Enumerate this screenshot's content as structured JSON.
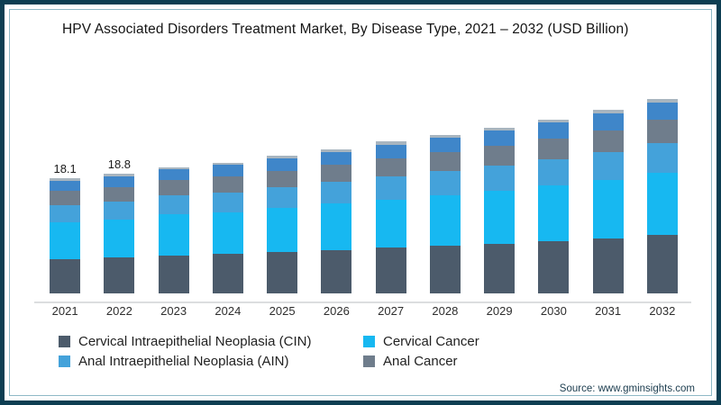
{
  "source": "Source: www.gminsights.com",
  "colors": {
    "frame_border": "#0D3E52",
    "frame_inner_line": "#8FB9C6",
    "axis_line": "#DCDEDF",
    "cin_dark_slate": "#4C5B6B",
    "cervical_cancer_cyan": "#17B8F1",
    "ain_blue": "#44A2DA",
    "anal_cancer_gray": "#6F7D8C",
    "unlabeled_blue": "#3F86C9",
    "unlabeled_cap_gray": "#A8B5BF"
  },
  "legend": {
    "items": [
      {
        "label": "Cervical Intraepithelial Neoplasia (CIN)",
        "color": "#4C5B6B"
      },
      {
        "label": "Cervical Cancer",
        "color": "#17B8F1"
      },
      {
        "label": "Anal Intraepithelial Neoplasia (AIN)",
        "color": "#44A2DA"
      },
      {
        "label": "Anal Cancer",
        "color": "#6F7D8C"
      }
    ]
  },
  "chart_data": {
    "type": "bar",
    "stacked": true,
    "title": "HPV Associated Disorders Treatment Market, By Disease Type, 2021 – 2032 (USD Billion)",
    "unit": "USD Billion",
    "xlabel": "",
    "ylabel": "",
    "grid": false,
    "legend_position": "bottom",
    "categories": [
      "2021",
      "2022",
      "2023",
      "2024",
      "2025",
      "2026",
      "2027",
      "2028",
      "2029",
      "2030",
      "2031",
      "2032"
    ],
    "series": [
      {
        "name": "Cervical Intraepithelial Neoplasia (CIN)",
        "color": "#4C5B6B",
        "in_legend": true,
        "values": [
          5.4,
          5.6,
          6.0,
          6.2,
          6.5,
          6.8,
          7.2,
          7.5,
          7.8,
          8.2,
          8.7,
          9.2
        ]
      },
      {
        "name": "Cervical Cancer",
        "color": "#17B8F1",
        "in_legend": true,
        "values": [
          5.8,
          6.0,
          6.4,
          6.6,
          6.9,
          7.3,
          7.6,
          8.0,
          8.4,
          8.8,
          9.2,
          9.8
        ]
      },
      {
        "name": "Anal Intraepithelial Neoplasia (AIN)",
        "color": "#44A2DA",
        "in_legend": true,
        "values": [
          2.7,
          2.8,
          3.0,
          3.1,
          3.3,
          3.4,
          3.6,
          3.8,
          3.9,
          4.1,
          4.3,
          4.6
        ]
      },
      {
        "name": "Anal Cancer",
        "color": "#6F7D8C",
        "in_legend": true,
        "values": [
          2.2,
          2.3,
          2.4,
          2.5,
          2.6,
          2.7,
          2.9,
          3.0,
          3.1,
          3.3,
          3.5,
          3.7
        ]
      },
      {
        "name": "unlabeled-segment-blue",
        "color": "#3F86C9",
        "in_legend": false,
        "values": [
          1.6,
          1.7,
          1.7,
          1.8,
          1.9,
          2.0,
          2.1,
          2.2,
          2.4,
          2.5,
          2.6,
          2.7
        ]
      },
      {
        "name": "unlabeled-segment-gray-cap",
        "color": "#A8B5BF",
        "in_legend": false,
        "values": [
          0.4,
          0.4,
          0.4,
          0.4,
          0.5,
          0.5,
          0.5,
          0.5,
          0.5,
          0.5,
          0.6,
          0.6
        ]
      }
    ],
    "totals": [
      18.1,
      18.8,
      19.9,
      20.6,
      21.7,
      22.7,
      23.9,
      25.0,
      26.1,
      27.4,
      28.9,
      30.6
    ],
    "bar_labels": {
      "2021": "18.1",
      "2022": "18.8"
    }
  }
}
